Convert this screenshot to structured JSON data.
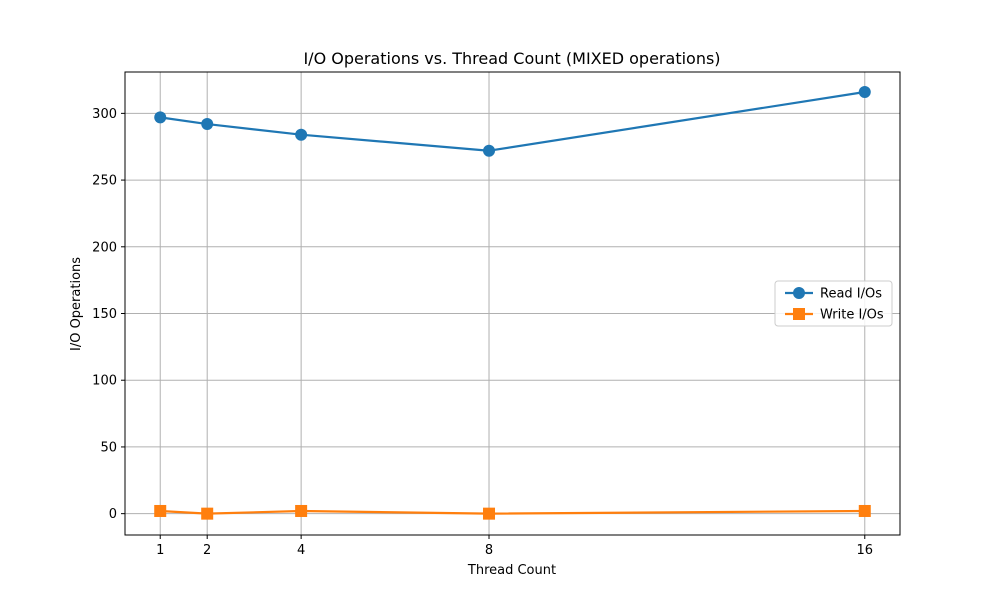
{
  "chart_data": {
    "type": "line",
    "title": "I/O Operations vs. Thread Count (MIXED operations)",
    "xlabel": "Thread Count",
    "ylabel": "I/O Operations",
    "x": [
      1,
      2,
      4,
      8,
      16
    ],
    "x_tick_labels": [
      "1",
      "2",
      "4",
      "8",
      "16"
    ],
    "xlim": [
      0.25,
      16.75
    ],
    "ylim": [
      -16,
      331
    ],
    "y_ticks": [
      0,
      50,
      100,
      150,
      200,
      250,
      300
    ],
    "y_tick_labels": [
      "0",
      "50",
      "100",
      "150",
      "200",
      "250",
      "300"
    ],
    "grid": true,
    "legend_placement": "center-right",
    "series": [
      {
        "name": "Read I/Os",
        "values": [
          297,
          292,
          284,
          272,
          316
        ],
        "color": "#1f77b4",
        "marker": "circle"
      },
      {
        "name": "Write I/Os",
        "values": [
          2,
          0,
          2,
          0,
          2
        ],
        "color": "#ff7f0e",
        "marker": "square"
      }
    ]
  }
}
